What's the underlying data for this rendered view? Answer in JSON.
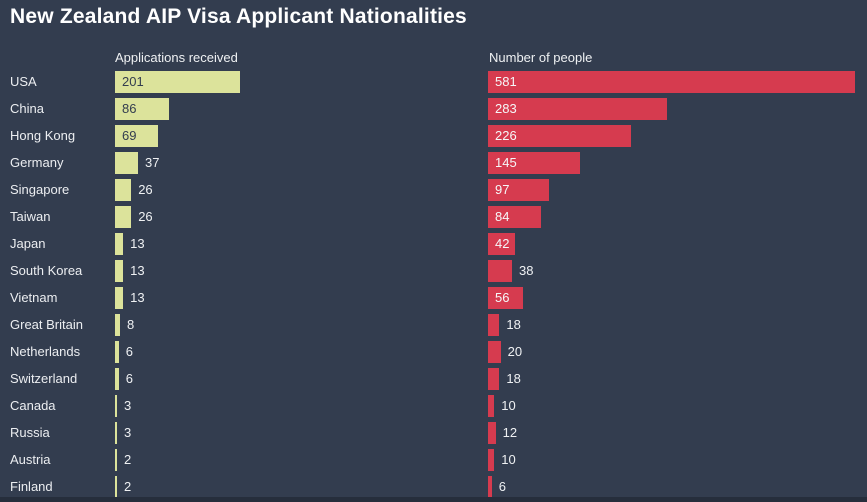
{
  "title": "New Zealand AIP Visa Applicant Nationalities",
  "columns": {
    "left": "Applications received",
    "right": "Number of people"
  },
  "colors": {
    "background": "#333d4f",
    "applications_bar": "#dce39b",
    "people_bar": "#d63b4f",
    "label_on_green": "#333d4f",
    "label_on_red": "#f6f7f8",
    "text": "#eff1f3",
    "title_text": "#ffffff",
    "bottom_strip": "#262e3c"
  },
  "chart_data": {
    "type": "bar",
    "orientation": "horizontal",
    "title": "New Zealand AIP Visa Applicant Nationalities",
    "grid": false,
    "legend_position": "column-headers",
    "categories": [
      "USA",
      "China",
      "Hong Kong",
      "Germany",
      "Singapore",
      "Taiwan",
      "Japan",
      "South Korea",
      "Vietnam",
      "Great Britain",
      "Netherlands",
      "Switzerland",
      "Canada",
      "Russia",
      "Austria",
      "Finland"
    ],
    "series": [
      {
        "name": "Applications received",
        "color": "#dce39b",
        "xlim": [
          0,
          201
        ],
        "values": [
          201,
          86,
          69,
          37,
          26,
          26,
          13,
          13,
          13,
          8,
          6,
          6,
          3,
          3,
          2,
          2
        ]
      },
      {
        "name": "Number of people",
        "color": "#d63b4f",
        "xlim": [
          0,
          581
        ],
        "values": [
          581,
          283,
          226,
          145,
          97,
          84,
          42,
          38,
          56,
          18,
          20,
          18,
          10,
          12,
          10,
          6
        ]
      }
    ]
  }
}
